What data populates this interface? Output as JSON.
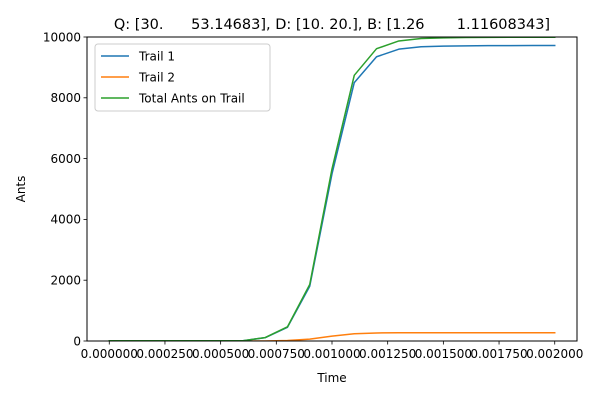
{
  "chart_data": {
    "type": "line",
    "title": "Q: [30.      53.14683], D: [10. 20.], B: [1.26       1.11608343]",
    "xlabel": "Time",
    "ylabel": "Ants",
    "xlim": [
      0,
      0.002
    ],
    "ylim": [
      0,
      10000
    ],
    "x_ticks": [
      0.0,
      0.00025,
      0.0005,
      0.00075,
      0.001,
      0.00125,
      0.0015,
      0.00175,
      0.002
    ],
    "x_tick_labels": [
      "0.000000",
      "0.000250",
      "0.000500",
      "0.000750",
      "0.001000",
      "0.001250",
      "0.001500",
      "0.001750",
      "0.002000"
    ],
    "y_ticks": [
      0,
      2000,
      4000,
      6000,
      8000,
      10000
    ],
    "y_tick_labels": [
      "0",
      "2000",
      "4000",
      "6000",
      "8000",
      "10000"
    ],
    "grid": false,
    "legend_position": "top-left",
    "x": [
      0.0,
      0.0001,
      0.0002,
      0.0003,
      0.0004,
      0.0005,
      0.0006,
      0.0007,
      0.0008,
      0.0009,
      0.001,
      0.0011,
      0.0012,
      0.0013,
      0.0014,
      0.0015,
      0.0016,
      0.0017,
      0.0018,
      0.0019,
      0.002
    ],
    "series": [
      {
        "name": "Trail 1",
        "color": "#1f77b4",
        "values": [
          10,
          10,
          10,
          10,
          10,
          10,
          10,
          110,
          450,
          1800,
          5500,
          8500,
          9350,
          9600,
          9680,
          9700,
          9710,
          9715,
          9718,
          9720,
          9720
        ]
      },
      {
        "name": "Trail 2",
        "color": "#ff7f0e",
        "values": [
          0,
          0,
          0,
          0,
          0,
          0,
          0,
          2,
          15,
          60,
          160,
          240,
          265,
          270,
          272,
          273,
          273,
          273,
          273,
          273,
          273
        ]
      },
      {
        "name": "Total Ants on Trail",
        "color": "#2ca02c",
        "values": [
          10,
          10,
          10,
          10,
          10,
          10,
          10,
          112,
          465,
          1860,
          5660,
          8740,
          9615,
          9870,
          9952,
          9973,
          9983,
          9988,
          9991,
          9993,
          9993
        ]
      }
    ]
  }
}
